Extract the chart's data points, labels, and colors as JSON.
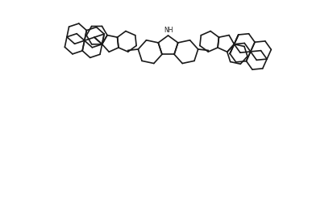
{
  "bg_color": "#ffffff",
  "line_color": "#1a1a1a",
  "lw": 1.2,
  "figsize": [
    4.13,
    2.44
  ],
  "dpi": 100,
  "xlim": [
    0,
    10
  ],
  "ylim": [
    0,
    6
  ],
  "bl": 0.32
}
